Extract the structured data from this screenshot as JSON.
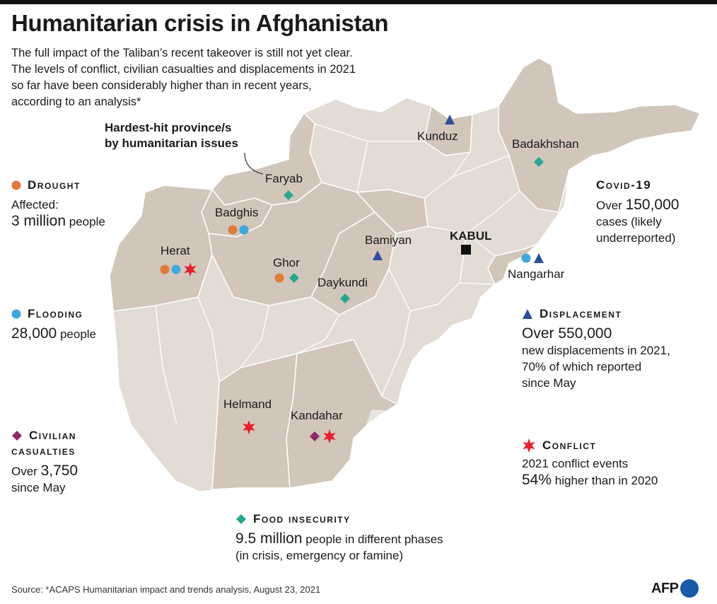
{
  "title": "Humanitarian crisis in Afghanistan",
  "subtitle_lines": [
    "The full impact of the Taliban’s recent takeover is still not yet clear.",
    "The levels of conflict, civilian casualties and displacements in 2021",
    "so far have been considerably higher than in recent years,",
    "according to an analysis*"
  ],
  "callout": [
    "Hardest-hit province/s",
    "by humanitarian issues"
  ],
  "capital": "KABUL",
  "provinces": [
    "Kunduz",
    "Badakhshan",
    "Faryab",
    "Badghis",
    "Herat",
    "Ghor",
    "Bamiyan",
    "Daykundi",
    "Nangarhar",
    "Helmand",
    "Kandahar"
  ],
  "colors": {
    "drought": "#e07b39",
    "flooding": "#3ea9dd",
    "displacement": "#2f4f9e",
    "conflict": "#e5202a",
    "civilian_casualties": "#8e2a66",
    "food_insecurity": "#2aa690",
    "province_base": "#e3dcd5",
    "province_highlight": "#d2c6ba",
    "border": "#ffffff"
  },
  "legend": {
    "drought": {
      "heading": "Drought",
      "l1": "Affected:",
      "big": "3 million",
      "l2": " people"
    },
    "flooding": {
      "heading": "Flooding",
      "big": "28,000",
      "l1": " people"
    },
    "civilian": {
      "heading1": "Civilian",
      "heading2": "casualties",
      "pre": "Over ",
      "big": "3,750",
      "l1": "since May"
    },
    "food": {
      "heading": "Food insecurity",
      "big": "9.5 million",
      "l1": " people in different phases",
      "l2": "(in crisis, emergency or famine)"
    },
    "covid": {
      "heading": "Covid-19",
      "pre": "Over ",
      "big": "150,000",
      "l1": "cases (likely",
      "l2": "underreported)"
    },
    "displacement": {
      "heading": "Displacement",
      "big": "Over 550,000",
      "l1": "new displacements in 2021,",
      "l2": "70% of which reported",
      "l3": "since May"
    },
    "conflict": {
      "heading": "Conflict",
      "l1": "2021 conflict events",
      "big": "54%",
      "l2": " higher than in 2020"
    }
  },
  "source": "Source: *ACAPS Humanitarian impact and trends analysis, August 23, 2021",
  "logo": "AFP",
  "watermark": "AFP"
}
